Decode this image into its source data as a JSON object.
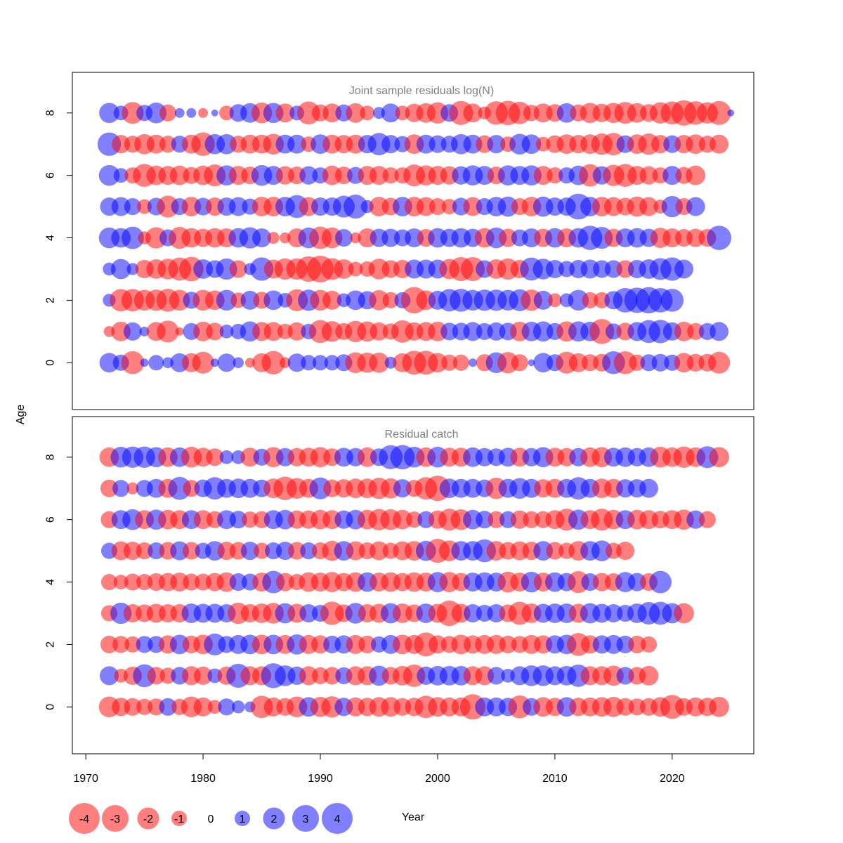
{
  "chart_data": {
    "type": "scatter",
    "subtype": "bubble",
    "xlabel": "Year",
    "ylabel": "Age",
    "xlim": [
      1969,
      2027
    ],
    "ylim": [
      -1.5,
      9.3
    ],
    "x_ticks": [
      1970,
      1980,
      1990,
      2000,
      2010,
      2020
    ],
    "y_ticks": [
      0,
      2,
      4,
      6,
      8
    ],
    "years_range": [
      1972,
      2024
    ],
    "ages": [
      0,
      1,
      2,
      3,
      4,
      5,
      6,
      7,
      8
    ],
    "colors": {
      "positive": "#0000ff",
      "negative": "#ff0000",
      "alpha": 0.5,
      "panel_title": "#808080"
    },
    "legend": {
      "values": [
        -4,
        -3,
        -2,
        -1,
        0,
        1,
        2,
        3,
        4
      ],
      "labels": [
        "-4",
        "-3",
        "-2",
        "-1",
        "0",
        "1",
        "2",
        "3",
        "4"
      ]
    },
    "panels": [
      {
        "title": "Joint sample residuals log(N)",
        "residuals": {
          "0": [
            1.6,
            1.1,
            -2.2,
            0.3,
            1,
            0.5,
            1.5,
            -1.5,
            -2,
            0.3,
            1.4,
            0.5,
            -0.4,
            -1.5,
            -2.3,
            -0.5,
            1.4,
            1,
            1,
            1,
            1.2,
            -1.8,
            -1.7,
            -1.7,
            0.6,
            -1.5,
            -2.4,
            -2.4,
            -1.6,
            -1.1,
            -1.1,
            0.3,
            -1.2,
            1.8,
            -1.9,
            -1.2,
            0.2,
            1.6,
            1.2,
            -2,
            -1.5,
            -1.2,
            -1.3,
            2.2,
            -2.2,
            -1.1,
            1.2,
            1.3,
            1.1,
            -1.6,
            -1.3,
            -1.3,
            -2
          ],
          "1": [
            -0.5,
            -1.6,
            1.4,
            0.4,
            -1.5,
            -2,
            -0.3,
            1.2,
            -1.6,
            -1.3,
            0.8,
            1,
            1.7,
            -1.5,
            -1.5,
            -1,
            -1.4,
            1,
            -2.2,
            -1.8,
            -1.2,
            -1.9,
            -1.7,
            -1.4,
            -1.1,
            -2.1,
            -1.4,
            -1.5,
            -1.6,
            1.3,
            1.3,
            1.5,
            1.2,
            1.4,
            1.3,
            -1.6,
            1.6,
            1.7,
            1.2,
            -1.7,
            1.7,
            1.6,
            -2.6,
            1.1,
            -1.3,
            1.5,
            2.2,
            2.3,
            1.4,
            -1.6,
            -1.2,
            1.2,
            1.5
          ],
          "2": [
            0.7,
            -2.1,
            -2.1,
            -1.8,
            -1.9,
            -2.2,
            -1.8,
            1.2,
            -1.8,
            -1.6,
            1.8,
            -1,
            1.5,
            -1.2,
            1.6,
            0.9,
            -2,
            1.9,
            -1.8,
            -1.5,
            0.8,
            1.6,
            1.4,
            -1.7,
            -1.1,
            1.1,
            -2.9,
            -1.6,
            1.5,
            2.1,
            2.2,
            1.8,
            1.9,
            1.9,
            1.8,
            2,
            -1.9,
            1.5,
            -0.8,
            0.8,
            1.8,
            -1.1,
            -1.1,
            1.4,
            2.5,
            2.7,
            2.9,
            2.5,
            2.2
          ],
          "3": [
            0.7,
            1.7,
            0.6,
            -1.4,
            -1.6,
            -1.8,
            -2.2,
            -2.5,
            1.6,
            1.3,
            1.9,
            -1.3,
            0.6,
            2.3,
            -1.5,
            -1.9,
            -1.9,
            -2.7,
            -3,
            -2,
            -1.6,
            -0.9,
            -1,
            -1.8,
            -1.3,
            -1.4,
            1.5,
            1.5,
            1.5,
            -1.7,
            -2.4,
            -2.4,
            1.3,
            -1.6,
            -1.9,
            -1.4,
            2.2,
            1.8,
            1.4,
            1.1,
            1.4,
            1.5,
            1.3,
            1.3,
            -1.3,
            1.4,
            1.6,
            2,
            2.3,
            1.5
          ],
          "4": [
            1.8,
            1.6,
            2.1,
            -0.7,
            -1.9,
            1.2,
            -2,
            -1.6,
            -1.4,
            -1.6,
            -1.5,
            1.6,
            1.9,
            1.5,
            -0.6,
            -0.5,
            -1.5,
            1.8,
            -2.1,
            -1.8,
            1.3,
            -0.5,
            -1.5,
            1.4,
            1.4,
            1.2,
            1.5,
            -1.3,
            1.6,
            1.4,
            1.6,
            1.4,
            -1.6,
            1.8,
            -1.4,
            1.2,
            1.5,
            -1.4,
            1.6,
            -1.5,
            1.6,
            2.5,
            2,
            -1.4,
            1.5,
            1.6,
            1.4,
            -1.7,
            -1.5,
            -1.3,
            -1.4,
            -1.3,
            2.5
          ],
          "5": [
            1.4,
            1.5,
            1.2,
            -0.9,
            1.3,
            -2,
            1.2,
            -1.6,
            1.3,
            -1.4,
            1.4,
            1.5,
            1.1,
            -1.6,
            -1.6,
            1.6,
            2.2,
            -1.5,
            1.4,
            1.4,
            2,
            2.4,
            0.7,
            -1.6,
            -1.3,
            1.6,
            -1.6,
            -1.5,
            -1.2,
            -1,
            1.3,
            -1.5,
            1.2,
            1.6,
            1.7,
            -1.2,
            -1.6,
            1.7,
            1.4,
            1.4,
            2.8,
            1.6,
            -1.6,
            -1.5,
            -1.3,
            -1.7,
            -1.5,
            -0.8,
            1.9,
            -1.2,
            1.5
          ],
          "6": [
            1.8,
            0.9,
            -1.1,
            -2.2,
            -1.6,
            -1.5,
            -1.6,
            -1.2,
            -1.6,
            -2,
            1.7,
            -1.5,
            -1.3,
            1.8,
            1.5,
            -1.4,
            -1.3,
            1.4,
            1.1,
            -1.6,
            -1.3,
            1.2,
            -1.5,
            -1.5,
            -1.1,
            -1.1,
            -2,
            -1.7,
            -1.5,
            -1.4,
            1.4,
            1.7,
            1.5,
            -1.3,
            1.7,
            1.5,
            1.7,
            -1.5,
            -1.1,
            1.1,
            1.6,
            -2.1,
            1.4,
            -1.9,
            -2.2,
            -1.5,
            -1.4,
            -1.1,
            1.5,
            -1.2,
            -1.6
          ],
          "7": [
            2.3,
            -1.4,
            -1.2,
            -1.7,
            -1.5,
            -1.2,
            1.2,
            -1.5,
            -2.3,
            1.7,
            1.7,
            -1.2,
            -1.5,
            -1.5,
            -1.8,
            1.5,
            1.5,
            -1,
            1.6,
            -1.5,
            -1.4,
            -1.5,
            1.4,
            2.1,
            1.4,
            1.1,
            -1.6,
            1.5,
            1.3,
            1.2,
            1.7,
            1.5,
            -1.3,
            1.4,
            -1,
            1.8,
            1.6,
            -0.9,
            -1.3,
            -1.6,
            -1.4,
            -1.6,
            -1.9,
            -2.1,
            1.3,
            -1.6,
            -1.9,
            -1.4,
            1.3,
            -1.4,
            -1.6,
            -1.2,
            -1.5
          ],
          "8": [
            1.7,
            0.9,
            -2,
            1.1,
            1.8,
            -1.2,
            0.4,
            0.4,
            -0.4,
            0.2,
            -0.9,
            1.3,
            1.6,
            -1.8,
            1.7,
            -1.5,
            0.9,
            -2.2,
            -1.2,
            -1.5,
            1.2,
            -1.6,
            -0.9,
            0.6,
            1.5,
            -0.9,
            -1.4,
            -1.6,
            -1.9,
            1.3,
            -2.4,
            -1.5,
            -0.7,
            -2.3,
            -2.5,
            -2.1,
            -1.1,
            -1.5,
            -1.3,
            1.6,
            -1.2,
            -1.7,
            -1.4,
            -1.7,
            -2,
            -1.6,
            -1.3,
            -1.9,
            -2.2,
            -2.7,
            -2.3,
            -1.9,
            -2.4,
            0.2
          ]
        }
      },
      {
        "title": "Residual catch",
        "residuals": {
          "0": [
            -1.8,
            -1.4,
            -1.3,
            -1.1,
            -1.2,
            1.3,
            -1.1,
            -1.8,
            -1.5,
            -0.8,
            1.2,
            0.7,
            0.5,
            -2.1,
            -1.5,
            -1.3,
            -1.8,
            1.6,
            -1.7,
            -1.9,
            1.4,
            -1.5,
            -1.4,
            -1.6,
            -1.6,
            -1.3,
            -1.4,
            -2.1,
            -1.6,
            -1.5,
            -1.5,
            -2.7,
            1.5,
            1.5,
            1.4,
            -2.2,
            1.3,
            -1.6,
            -1.4,
            1.6,
            -1.4,
            -1.5,
            -1.6,
            -1.7,
            -1.3,
            -1.2,
            -1.3,
            -1.6,
            -2.4,
            -1.3,
            -1.5,
            -1.4,
            -1.7
          ],
          "1": [
            1.5,
            -0.8,
            -1.4,
            2.2,
            -1.3,
            -1.1,
            1.3,
            -1.5,
            -1.4,
            0.9,
            -1.4,
            2.4,
            -1.5,
            -1.5,
            2.6,
            1.8,
            1.4,
            -1.5,
            -1.2,
            -1.3,
            1.2,
            -1.5,
            -1.5,
            1.7,
            -1.3,
            -1.6,
            -2.1,
            1.4,
            1.6,
            1.6,
            1.6,
            -1.5,
            -1.5,
            1.3,
            0.8,
            1.5,
            1.8,
            1.8,
            1.5,
            1.6,
            2.1,
            -1.5,
            -1.5,
            -1.7,
            1.3,
            -1.3,
            -1.6
          ],
          "2": [
            -1.3,
            -1.2,
            -1.1,
            1.2,
            1.2,
            -1.4,
            1.6,
            -1.3,
            -1.6,
            2,
            1.2,
            1.5,
            1.6,
            -1.6,
            1.6,
            -1.5,
            1.7,
            -1.5,
            -1.4,
            1.3,
            1.4,
            -1.5,
            -1.3,
            1.1,
            1.5,
            -1.6,
            -1.5,
            -2.4,
            -1.4,
            -1.2,
            -1.6,
            -1.4,
            -1.5,
            -1.5,
            -1.3,
            -1.2,
            -1.5,
            -1.4,
            1.4,
            1.6,
            -2.2,
            -1.4,
            1.4,
            1.5,
            1.3,
            -1.3,
            -1.1
          ],
          "3": [
            -1.1,
            1.9,
            -1.4,
            -1.3,
            -1.5,
            -1.4,
            -1.4,
            1.6,
            1.5,
            1.5,
            1.4,
            -1.9,
            -1.4,
            -1.6,
            -1.8,
            1.7,
            -1.5,
            1.4,
            1.2,
            -2.3,
            -1.3,
            1.8,
            -1.4,
            -1.5,
            1.7,
            -1.6,
            -1.3,
            1.6,
            -1.5,
            -2.7,
            -1.5,
            1.4,
            1.2,
            1.4,
            -1.3,
            -2.2,
            -1.6,
            1.5,
            1.6,
            1.6,
            -1.5,
            1.7,
            1.5,
            1.4,
            1.2,
            1.6,
            2.1,
            2.2,
            1.7,
            -1.7
          ],
          "4": [
            -1.1,
            -0.9,
            -1.2,
            -1.1,
            -1.3,
            -1.4,
            -1.5,
            -1.2,
            -1.2,
            -1.4,
            -1.6,
            1.3,
            1.2,
            -1.5,
            2.1,
            -1.4,
            -1.1,
            -1.6,
            -1.5,
            -1.7,
            -1.4,
            -1.6,
            1.6,
            -1.5,
            -1.6,
            -1.4,
            -1.6,
            -1.5,
            1.7,
            -1.7,
            -1.4,
            1.5,
            1.6,
            1.5,
            -1.8,
            -1.5,
            1.8,
            -1.5,
            1.6,
            1.4,
            -2,
            1.3,
            -1.4,
            -1.3,
            1.7,
            1.4,
            -1.3,
            2.1
          ],
          "5": [
            1.1,
            -1.5,
            -1.4,
            -1.2,
            1.2,
            -1.3,
            1.5,
            -1.3,
            1.1,
            1.6,
            -1.4,
            -1.3,
            1.4,
            -1.1,
            1.2,
            1.4,
            -1.3,
            1.2,
            -1.2,
            -1.7,
            1.6,
            -1.5,
            -1.2,
            -1.5,
            -1.1,
            -1.5,
            -1.6,
            1.7,
            -2.4,
            -1.8,
            1.6,
            1.6,
            2.2,
            -1.6,
            -1.3,
            -1.5,
            -1.4,
            1.6,
            -1.3,
            -1.1,
            -1.6,
            1.6,
            1.8,
            -1.1,
            -1.4
          ],
          "6": [
            -1.2,
            1.5,
            1.8,
            -1.5,
            1.7,
            -1.6,
            -1.5,
            1.5,
            -1.5,
            -1.2,
            1.5,
            1.3,
            -1.1,
            -1.2,
            1.5,
            1.6,
            -1.4,
            -1.4,
            -1.6,
            -1.5,
            1.4,
            1.6,
            -1.6,
            -1.9,
            -1.8,
            -1.6,
            -1.1,
            1.2,
            -1.4,
            -2,
            -1.8,
            1.6,
            1.3,
            -1.2,
            1.2,
            -1.4,
            -1.2,
            -1.2,
            -1.5,
            -2,
            1.7,
            -1.5,
            -2,
            -1.6,
            1.5,
            -1.6,
            -1.5,
            -1.3,
            -1.5,
            -1.7,
            1.4,
            -1.2
          ],
          "7": [
            -1.3,
            1.2,
            -0.6,
            1.2,
            1.5,
            -1.5,
            2.2,
            -1.2,
            1.3,
            2.1,
            1.5,
            1.6,
            1.5,
            1.3,
            -1.6,
            -2.3,
            -1.8,
            -1.5,
            2,
            -1.3,
            -1.4,
            -1.6,
            -1.6,
            -1.9,
            -1.7,
            1.4,
            -1.2,
            -2.1,
            -2.7,
            1.6,
            1.5,
            1.5,
            1.3,
            -1.9,
            1.5,
            1.8,
            1.5,
            -1.4,
            -1.5,
            1.5,
            2.1,
            1.5,
            -1.6,
            -1.5,
            1.4,
            1.4,
            1.5
          ],
          "8": [
            -1.6,
            1.8,
            1.9,
            1.9,
            1.7,
            -1.6,
            1.6,
            -1.8,
            -1.5,
            -1.3,
            0.8,
            0.8,
            -1.5,
            1.2,
            -1.7,
            1.4,
            -1.4,
            -1.5,
            -1.7,
            -1.3,
            1.5,
            1.4,
            -1.6,
            1.3,
            2.4,
            2.5,
            1.8,
            -1.6,
            1.8,
            -1.5,
            -1.5,
            1.6,
            1.4,
            1.3,
            1.5,
            -1.5,
            1.4,
            1.7,
            -1.5,
            -1.4,
            1.4,
            -1.6,
            -1.7,
            1.5,
            1.6,
            1.4,
            1.6,
            -1.8,
            -1.6,
            -1.9,
            -1.6,
            2,
            -1.7
          ]
        }
      }
    ]
  }
}
